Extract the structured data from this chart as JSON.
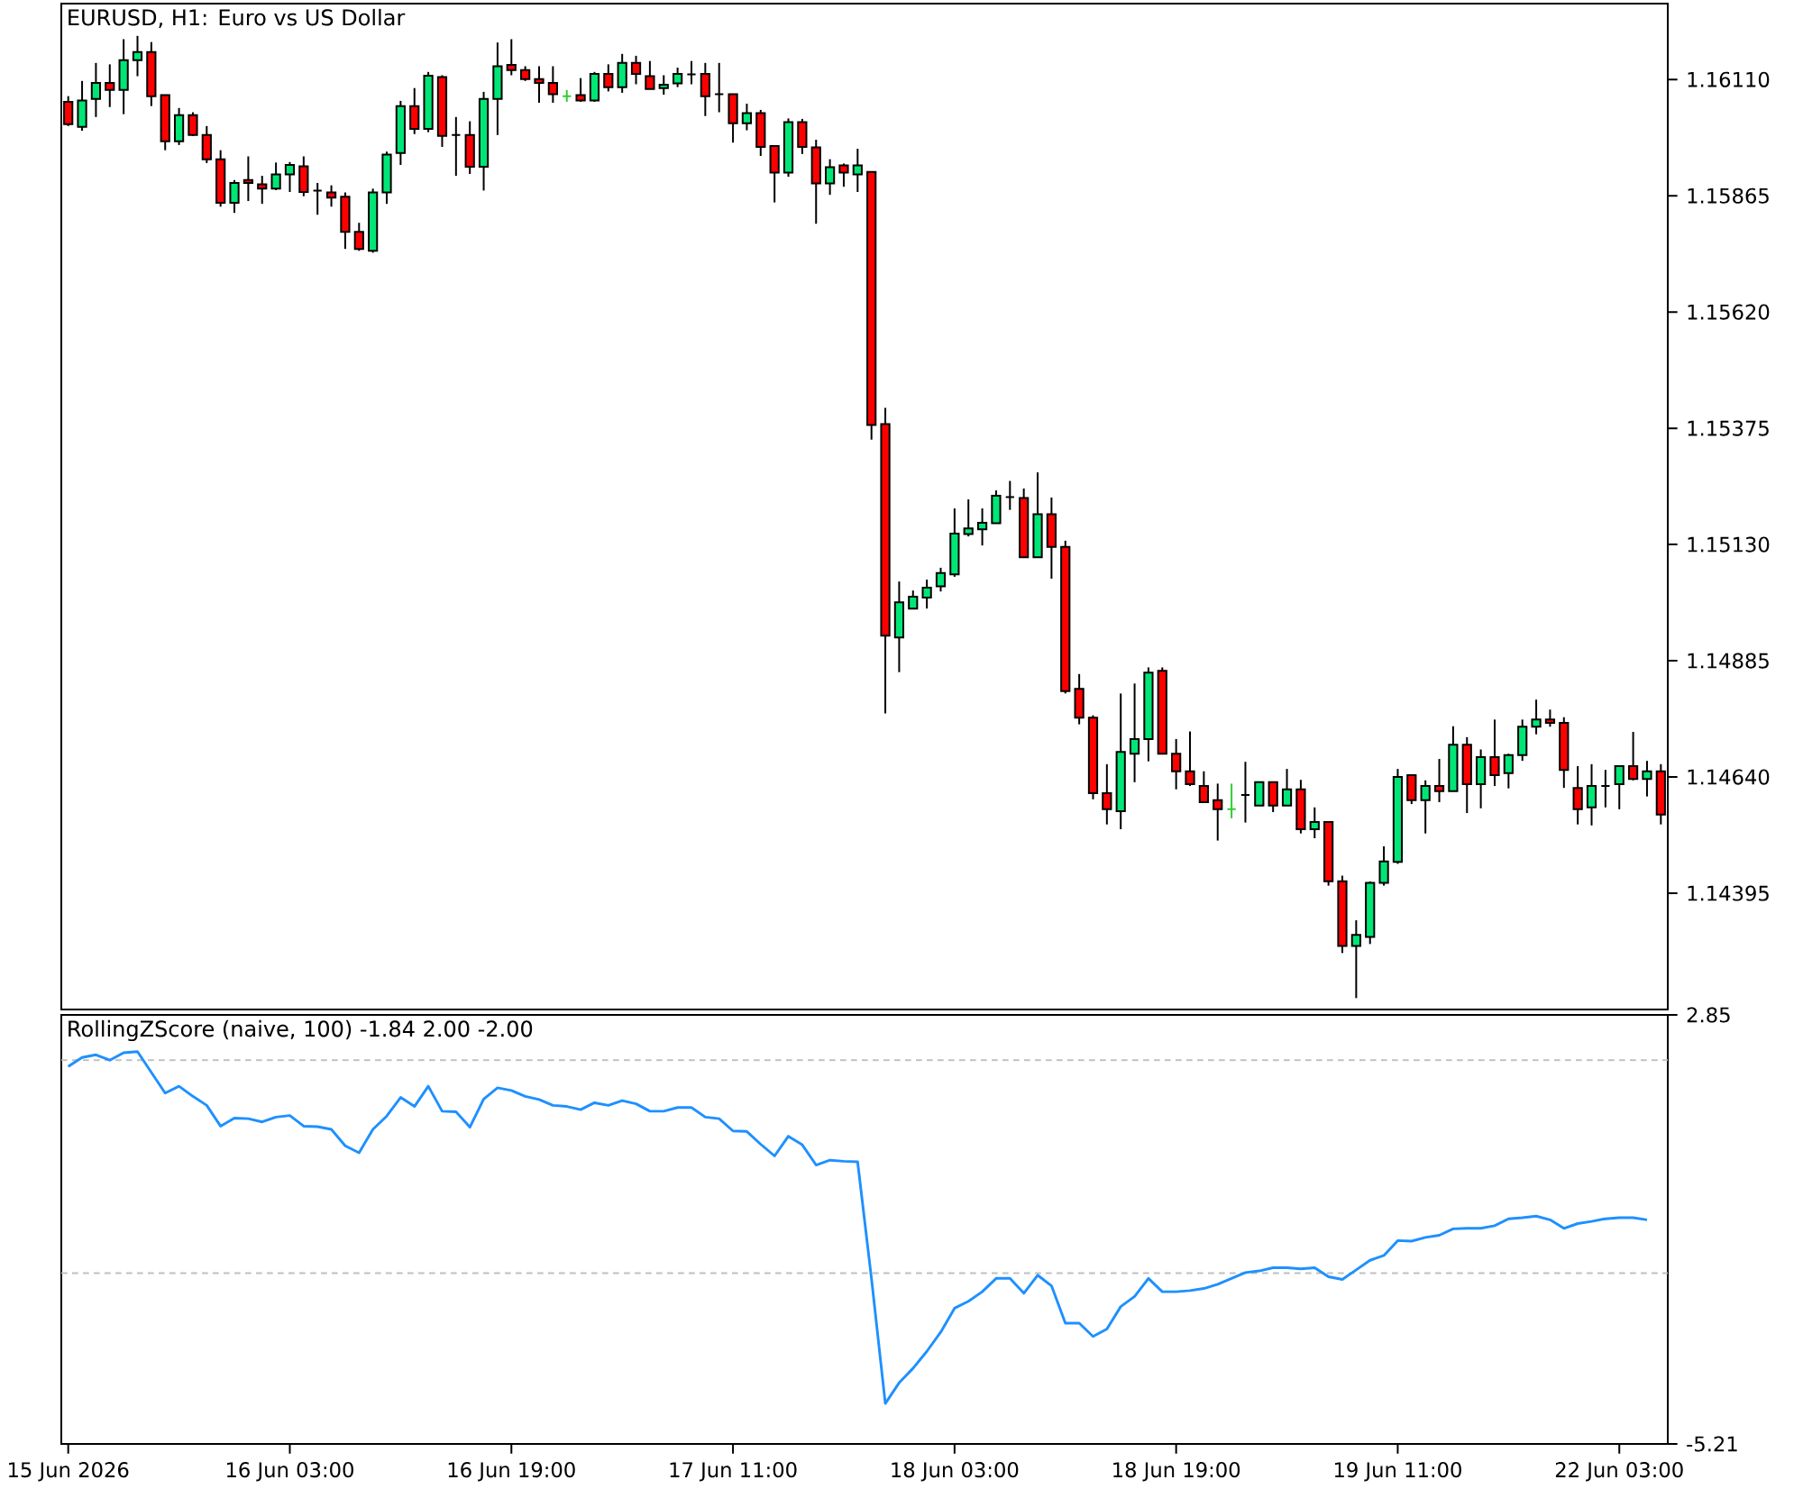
{
  "chart_data": [
    {
      "type": "candlestick",
      "title": "EURUSD, H1: Euro vs US Dollar",
      "categories": [
        null,
        null,
        null,
        null,
        null,
        null,
        null,
        null,
        null,
        null,
        null,
        null,
        null,
        null,
        null,
        null,
        null,
        null,
        null,
        null,
        null,
        null,
        null,
        null,
        null,
        null,
        null,
        null,
        null,
        null,
        null,
        null,
        null,
        null,
        null,
        null,
        null,
        null,
        null,
        null,
        null,
        null,
        null,
        null,
        null,
        null,
        null,
        null,
        null,
        null,
        null,
        null,
        null,
        null,
        null,
        null,
        null,
        null,
        null,
        null,
        null,
        null,
        null,
        null,
        null,
        null,
        null,
        null,
        null,
        null,
        null,
        null,
        null,
        null,
        null,
        null,
        null,
        null,
        null,
        null,
        null,
        null,
        null,
        null,
        null,
        null,
        null,
        null,
        null,
        null,
        null,
        null,
        null,
        null,
        null,
        null,
        null,
        null,
        null,
        null,
        null,
        null,
        null,
        null,
        null,
        null,
        null,
        null,
        null,
        null,
        null,
        null,
        null,
        null,
        null,
        null
      ],
      "ohlc": [
        [
          1.16063,
          1.16075,
          1.16012,
          1.16016
        ],
        [
          1.1601,
          1.16107,
          1.16002,
          1.16066
        ],
        [
          1.16069,
          1.16145,
          1.16031,
          1.16103
        ],
        [
          1.16103,
          1.16142,
          1.16052,
          1.16088
        ],
        [
          1.16088,
          1.16195,
          1.16037,
          1.16151
        ],
        [
          1.16151,
          1.16202,
          1.16117,
          1.16168
        ],
        [
          1.16168,
          1.16189,
          1.16054,
          1.16075
        ],
        [
          1.16077,
          1.16077,
          1.15961,
          1.1598
        ],
        [
          1.1598,
          1.1605,
          1.15972,
          1.16035
        ],
        [
          1.16035,
          1.16041,
          1.15991,
          1.15993
        ],
        [
          1.15993,
          1.16012,
          1.15934,
          1.15942
        ],
        [
          1.15942,
          1.15961,
          1.15842,
          1.1585
        ],
        [
          1.1585,
          1.15898,
          1.15829,
          1.15892
        ],
        [
          1.15898,
          1.15948,
          1.15854,
          1.15892
        ],
        [
          1.15889,
          1.15907,
          1.15848,
          1.1588
        ],
        [
          1.1588,
          1.15935,
          1.15877,
          1.1591
        ],
        [
          1.1591,
          1.15936,
          1.15873,
          1.1593
        ],
        [
          1.15927,
          1.15948,
          1.15864,
          1.15873
        ],
        [
          1.15876,
          1.15892,
          1.15825,
          1.15876
        ],
        [
          1.15872,
          1.15887,
          1.15842,
          1.15861
        ],
        [
          1.15863,
          1.15872,
          1.15753,
          1.15789
        ],
        [
          1.15789,
          1.15808,
          1.15749,
          1.15753
        ],
        [
          1.15749,
          1.1588,
          1.15745,
          1.15872
        ],
        [
          1.15872,
          1.15958,
          1.15848,
          1.15952
        ],
        [
          1.15955,
          1.16065,
          1.1593,
          1.16054
        ],
        [
          1.16054,
          1.16092,
          1.15995,
          1.16006
        ],
        [
          1.16006,
          1.16126,
          1.15999,
          1.16118
        ],
        [
          1.16115,
          1.16119,
          1.15968,
          1.15991
        ],
        [
          1.15993,
          1.16031,
          1.15907,
          1.15993
        ],
        [
          1.15993,
          1.16022,
          1.15911,
          1.15926
        ],
        [
          1.15926,
          1.16084,
          1.15876,
          1.16069
        ],
        [
          1.16069,
          1.16188,
          1.15993,
          1.16138
        ],
        [
          1.16141,
          1.16195,
          1.16119,
          1.1613
        ],
        [
          1.1613,
          1.16138,
          1.16107,
          1.16111
        ],
        [
          1.16111,
          1.16138,
          1.16061,
          1.16103
        ],
        [
          1.16103,
          1.16138,
          1.16061,
          1.16079
        ],
        [
          1.16075,
          1.16088,
          1.16063,
          1.16075
        ],
        [
          1.16077,
          1.16113,
          1.16063,
          1.16066
        ],
        [
          1.16066,
          1.16126,
          1.16063,
          1.16122
        ],
        [
          1.16122,
          1.16142,
          1.16085,
          1.16094
        ],
        [
          1.16094,
          1.16164,
          1.16082,
          1.16145
        ],
        [
          1.16145,
          1.1616,
          1.161,
          1.16122
        ],
        [
          1.16117,
          1.16149,
          1.1609,
          1.1609
        ],
        [
          1.16092,
          1.16119,
          1.16078,
          1.16099
        ],
        [
          1.16102,
          1.16135,
          1.16094,
          1.16122
        ],
        [
          1.16121,
          1.16149,
          1.161,
          1.16121
        ],
        [
          1.16122,
          1.16145,
          1.16033,
          1.16075
        ],
        [
          1.16079,
          1.16145,
          1.16041,
          1.16079
        ],
        [
          1.16079,
          1.16079,
          1.15977,
          1.16018
        ],
        [
          1.16018,
          1.16059,
          1.16003,
          1.16039
        ],
        [
          1.16039,
          1.16046,
          1.15949,
          1.15968
        ],
        [
          1.1597,
          1.1597,
          1.15851,
          1.15914
        ],
        [
          1.15914,
          1.16028,
          1.15905,
          1.1602
        ],
        [
          1.1602,
          1.16027,
          1.15953,
          1.15968
        ],
        [
          1.15967,
          1.15983,
          1.15806,
          1.15891
        ],
        [
          1.15891,
          1.15942,
          1.15867,
          1.15925
        ],
        [
          1.15929,
          1.15933,
          1.15884,
          1.15914
        ],
        [
          1.1591,
          1.15964,
          1.15873,
          1.15929
        ],
        [
          1.15915,
          1.15915,
          1.15351,
          1.15382
        ],
        [
          1.15384,
          1.15418,
          1.14774,
          1.14938
        ],
        [
          1.14934,
          1.15052,
          1.14861,
          1.15008
        ],
        [
          1.14995,
          1.15033,
          1.14995,
          1.1502
        ],
        [
          1.15018,
          1.15056,
          1.14995,
          1.15039
        ],
        [
          1.15042,
          1.15081,
          1.15031,
          1.1507
        ],
        [
          1.15067,
          1.15206,
          1.15062,
          1.15153
        ],
        [
          1.15152,
          1.15225,
          1.15147,
          1.15164
        ],
        [
          1.15162,
          1.15206,
          1.15128,
          1.15176
        ],
        [
          1.15175,
          1.15244,
          1.15175,
          1.15233
        ],
        [
          1.1523,
          1.15264,
          1.15203,
          1.1523
        ],
        [
          1.15228,
          1.15248,
          1.15103,
          1.15103
        ],
        [
          1.15103,
          1.15282,
          1.15103,
          1.15194
        ],
        [
          1.15194,
          1.15229,
          1.15058,
          1.15125
        ],
        [
          1.15125,
          1.15138,
          1.14816,
          1.14821
        ],
        [
          1.14826,
          1.14857,
          1.14751,
          1.14765
        ],
        [
          1.14765,
          1.1477,
          1.14593,
          1.14606
        ],
        [
          1.14606,
          1.14667,
          1.1454,
          1.14572
        ],
        [
          1.14568,
          1.14816,
          1.1453,
          1.14693
        ],
        [
          1.14689,
          1.14837,
          1.14629,
          1.1472
        ],
        [
          1.1472,
          1.14871,
          1.14673,
          1.1486
        ],
        [
          1.14864,
          1.14871,
          1.14689,
          1.14689
        ],
        [
          1.14689,
          1.1472,
          1.14614,
          1.14652
        ],
        [
          1.14652,
          1.14736,
          1.14621,
          1.14625
        ],
        [
          1.14621,
          1.14652,
          1.14587,
          1.14587
        ],
        [
          1.14591,
          1.14626,
          1.14506,
          1.14572
        ],
        [
          1.14572,
          1.14626,
          1.14553,
          1.14572
        ],
        [
          1.14602,
          1.14672,
          1.14544,
          1.14602
        ],
        [
          1.1458,
          1.14629,
          1.1458,
          1.14629
        ],
        [
          1.14629,
          1.14629,
          1.14566,
          1.1458
        ],
        [
          1.1458,
          1.14657,
          1.1458,
          1.14614
        ],
        [
          1.14614,
          1.14634,
          1.14521,
          1.1453
        ],
        [
          1.1453,
          1.14576,
          1.14511,
          1.14545
        ],
        [
          1.14545,
          1.14545,
          1.14411,
          1.1442
        ],
        [
          1.1442,
          1.14432,
          1.14269,
          1.14284
        ],
        [
          1.14284,
          1.14338,
          1.14174,
          1.14307
        ],
        [
          1.14303,
          1.1442,
          1.14288,
          1.14417
        ],
        [
          1.14417,
          1.14494,
          1.14411,
          1.14462
        ],
        [
          1.14461,
          1.14657,
          1.14457,
          1.1464
        ],
        [
          1.14644,
          1.14644,
          1.14583,
          1.14591
        ],
        [
          1.14591,
          1.14633,
          1.14521,
          1.14621
        ],
        [
          1.14621,
          1.14678,
          1.14587,
          1.1461
        ],
        [
          1.1461,
          1.14747,
          1.1461,
          1.14708
        ],
        [
          1.14708,
          1.14724,
          1.14564,
          1.14625
        ],
        [
          1.14625,
          1.14698,
          1.14574,
          1.14682
        ],
        [
          1.14682,
          1.14761,
          1.14621,
          1.14644
        ],
        [
          1.14648,
          1.14689,
          1.14616,
          1.14686
        ],
        [
          1.14686,
          1.14761,
          1.14674,
          1.14746
        ],
        [
          1.14746,
          1.14803,
          1.1473,
          1.14761
        ],
        [
          1.14761,
          1.14782,
          1.14746,
          1.14754
        ],
        [
          1.14754,
          1.14766,
          1.14617,
          1.14655
        ],
        [
          1.14617,
          1.14663,
          1.1454,
          1.14572
        ],
        [
          1.14576,
          1.14667,
          1.14538,
          1.14621
        ],
        [
          1.14621,
          1.14655,
          1.14576,
          1.14621
        ],
        [
          1.14625,
          1.14663,
          1.14572,
          1.14663
        ],
        [
          1.14663,
          1.14735,
          1.14633,
          1.14636
        ],
        [
          1.14636,
          1.14674,
          1.14599,
          1.14652
        ],
        [
          1.14652,
          1.14667,
          1.1454,
          1.14561
        ]
      ],
      "colors": [
        "#ff0000",
        "#00e676",
        "#00e676",
        "#ff0000",
        "#00e676",
        "#00e676",
        "#ff0000",
        "#ff0000",
        "#00e676",
        "#ff0000",
        "#ff0000",
        "#ff0000",
        "#00e676",
        "#ff0000",
        "#ff0000",
        "#00e676",
        "#00e676",
        "#ff0000",
        "#000000",
        "#ff0000",
        "#ff0000",
        "#ff0000",
        "#00e676",
        "#00e676",
        "#00e676",
        "#ff0000",
        "#00e676",
        "#ff0000",
        "#000000",
        "#ff0000",
        "#00e676",
        "#00e676",
        "#ff0000",
        "#ff0000",
        "#ff0000",
        "#ff0000",
        "#33cc33",
        "#ff0000",
        "#00e676",
        "#ff0000",
        "#00e676",
        "#ff0000",
        "#ff0000",
        "#00e676",
        "#00e676",
        "#000000",
        "#ff0000",
        "#000000",
        "#ff0000",
        "#00e676",
        "#ff0000",
        "#ff0000",
        "#00e676",
        "#ff0000",
        "#ff0000",
        "#00e676",
        "#ff0000",
        "#00e676",
        "#ff0000",
        "#ff0000",
        "#00e676",
        "#00e676",
        "#00e676",
        "#00e676",
        "#00e676",
        "#00e676",
        "#00e676",
        "#00e676",
        "#000000",
        "#ff0000",
        "#00e676",
        "#ff0000",
        "#ff0000",
        "#ff0000",
        "#ff0000",
        "#ff0000",
        "#00e676",
        "#00e676",
        "#00e676",
        "#ff0000",
        "#ff0000",
        "#ff0000",
        "#ff0000",
        "#ff0000",
        "#33cc33",
        "#000000",
        "#00e676",
        "#ff0000",
        "#00e676",
        "#ff0000",
        "#00e676",
        "#ff0000",
        "#ff0000",
        "#00e676",
        "#00e676",
        "#00e676",
        "#00e676",
        "#ff0000",
        "#00e676",
        "#ff0000",
        "#00e676",
        "#ff0000",
        "#00e676",
        "#ff0000",
        "#00e676",
        "#00e676",
        "#00e676",
        "#ff0000",
        "#ff0000",
        "#ff0000",
        "#00e676",
        "#000000",
        "#00e676",
        "#ff0000",
        "#00e676",
        "#ff0000"
      ],
      "ylim": [
        1.1415,
        1.1627
      ],
      "yticks": [
        {
          "value": 1.1611,
          "label": "1.16110"
        },
        {
          "value": 1.15865,
          "label": "1.15865"
        },
        {
          "value": 1.1562,
          "label": "1.15620"
        },
        {
          "value": 1.15375,
          "label": "1.15375"
        },
        {
          "value": 1.1513,
          "label": "1.15130"
        },
        {
          "value": 1.14885,
          "label": "1.14885"
        },
        {
          "value": 1.1464,
          "label": "1.14640"
        },
        {
          "value": 1.14395,
          "label": "1.14395"
        }
      ],
      "tick_labels": "y"
    },
    {
      "type": "line",
      "title": "RollingZScore (naive, 100) -1.84 2.00 -2.00",
      "categories": [
        "15 Jun 2026",
        null,
        null,
        null,
        null,
        null,
        null,
        null,
        null,
        null,
        null,
        null,
        null,
        null,
        null,
        null,
        "16 Jun 03:00",
        null,
        null,
        null,
        null,
        null,
        null,
        null,
        null,
        null,
        null,
        null,
        null,
        null,
        null,
        null,
        "16 Jun 19:00",
        null,
        null,
        null,
        null,
        null,
        null,
        null,
        null,
        null,
        null,
        null,
        null,
        null,
        null,
        null,
        "17 Jun 11:00",
        null,
        null,
        null,
        null,
        null,
        null,
        null,
        null,
        null,
        null,
        null,
        null,
        null,
        null,
        null,
        "18 Jun 03:00",
        null,
        null,
        null,
        null,
        null,
        null,
        null,
        null,
        null,
        null,
        null,
        null,
        null,
        null,
        null,
        "18 Jun 19:00",
        null,
        null,
        null,
        null,
        null,
        null,
        null,
        null,
        null,
        null,
        null,
        null,
        null,
        null,
        null,
        "19 Jun 11:00",
        null,
        null,
        null,
        null,
        null,
        null,
        null,
        null,
        null,
        null,
        null,
        null,
        null,
        null,
        null,
        "22 Jun 03:00",
        null,
        null,
        null
      ],
      "values": [
        1.88,
        2.05,
        2.1,
        2.0,
        2.14,
        2.16,
        1.77,
        1.38,
        1.51,
        1.32,
        1.15,
        0.76,
        0.91,
        0.9,
        0.84,
        0.93,
        0.96,
        0.76,
        0.75,
        0.7,
        0.39,
        0.26,
        0.7,
        0.95,
        1.3,
        1.13,
        1.51,
        1.04,
        1.03,
        0.74,
        1.27,
        1.48,
        1.43,
        1.32,
        1.26,
        1.15,
        1.13,
        1.07,
        1.2,
        1.15,
        1.24,
        1.18,
        1.04,
        1.04,
        1.11,
        1.11,
        0.93,
        0.9,
        0.67,
        0.66,
        0.42,
        0.2,
        0.57,
        0.41,
        0.03,
        0.12,
        0.1,
        0.09,
        -2.1,
        -4.45,
        -4.06,
        -3.79,
        -3.47,
        -3.11,
        -2.66,
        -2.53,
        -2.35,
        -2.1,
        -2.1,
        -2.38,
        -2.04,
        -2.24,
        -2.94,
        -2.94,
        -3.19,
        -3.05,
        -2.63,
        -2.44,
        -2.1,
        -2.35,
        -2.35,
        -2.33,
        -2.29,
        -2.21,
        -2.1,
        -1.99,
        -1.96,
        -1.9,
        -1.9,
        -1.92,
        -1.9,
        -2.07,
        -2.12,
        -1.94,
        -1.76,
        -1.67,
        -1.39,
        -1.4,
        -1.33,
        -1.29,
        -1.17,
        -1.16,
        -1.16,
        -1.11,
        -0.98,
        -0.96,
        -0.93,
        -1.0,
        -1.16,
        -1.07,
        -1.03,
        -0.98,
        -0.96,
        -0.96,
        -1.0,
        null
      ],
      "color": "#1e90ff",
      "ylim": [
        -5.21,
        2.85
      ],
      "yticks": [
        2.85,
        -5.21
      ],
      "ref_lines": [
        {
          "axis": "y",
          "value": 2,
          "color": "#c0c0c0",
          "line_style": "dashed"
        },
        {
          "axis": "y",
          "value": -2,
          "color": "#c0c0c0",
          "line_style": "dashed"
        }
      ]
    }
  ]
}
